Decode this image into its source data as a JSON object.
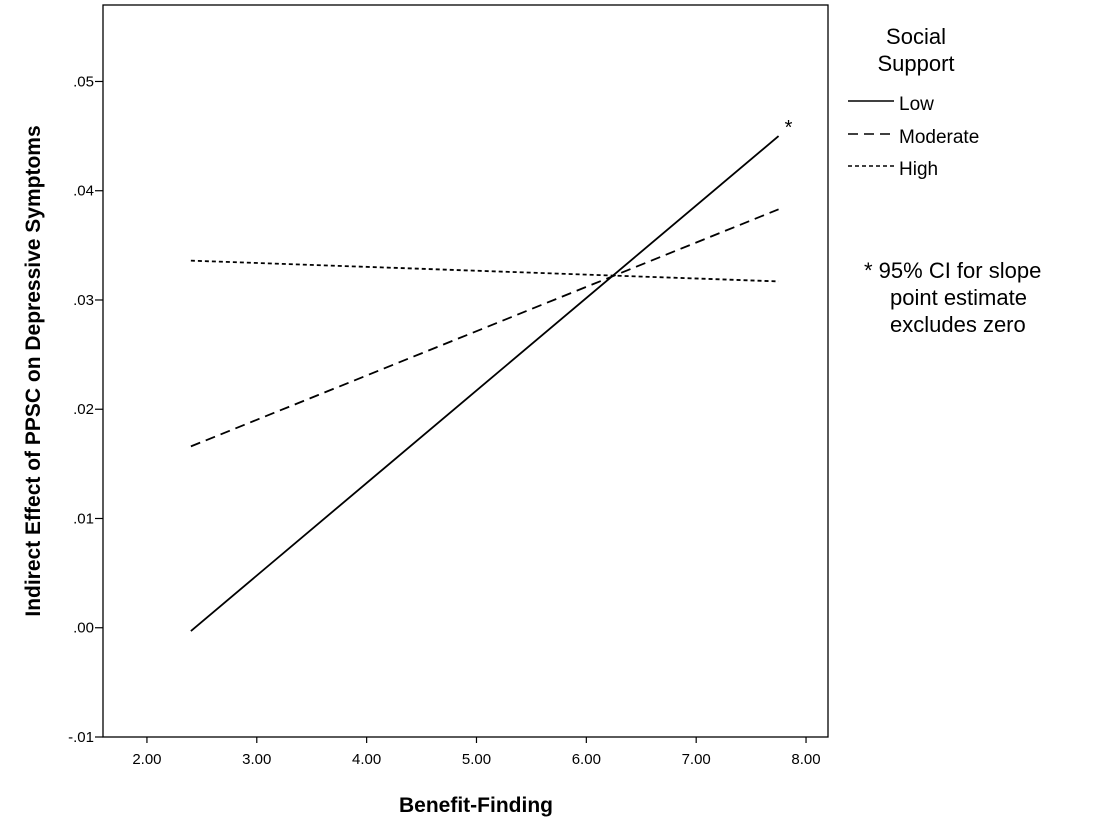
{
  "chart_data": {
    "type": "line",
    "xlabel": "Benefit-Finding",
    "ylabel": "Indirect Effect of PPSC on Depressive Symptoms",
    "xlim": [
      1.6,
      8.2
    ],
    "ylim": [
      -0.01,
      0.057
    ],
    "xticks": [
      2.0,
      3.0,
      4.0,
      5.0,
      6.0,
      7.0,
      8.0
    ],
    "xtick_labels": [
      "2.00",
      "3.00",
      "4.00",
      "5.00",
      "6.00",
      "7.00",
      "8.00"
    ],
    "yticks": [
      -0.01,
      0.0,
      0.01,
      0.02,
      0.03,
      0.04,
      0.05
    ],
    "ytick_labels": [
      "-.01",
      ".00",
      ".01",
      ".02",
      ".03",
      ".04",
      ".05"
    ],
    "grid": false,
    "legend_position": "right",
    "legend_title": [
      "Social",
      "Support"
    ],
    "series": [
      {
        "name": "Low",
        "dash": "solid",
        "x": [
          2.4,
          7.75
        ],
        "y": [
          -0.0003,
          0.045
        ],
        "annotation": "*"
      },
      {
        "name": "Moderate",
        "dash": "dashed",
        "x": [
          2.4,
          7.75
        ],
        "y": [
          0.0166,
          0.0383
        ]
      },
      {
        "name": "High",
        "dash": "dotted",
        "x": [
          2.4,
          7.75
        ],
        "y": [
          0.0336,
          0.0317
        ]
      }
    ],
    "note": [
      "* 95% CI for slope",
      "point estimate",
      "excludes zero"
    ]
  }
}
